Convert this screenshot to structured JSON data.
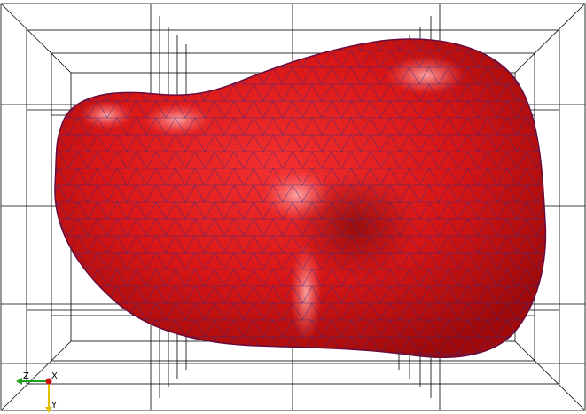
{
  "scene": {
    "object_color": "#e01818",
    "mesh_color": "#2a2a8a",
    "grid_color": "#000000",
    "background": "#ffffff"
  },
  "axes": {
    "z_label": "Z",
    "x_label": "X",
    "y_label": "Y",
    "z_color": "#1aa01a",
    "x_color": "#d01010",
    "y_color": "#e0c000"
  }
}
